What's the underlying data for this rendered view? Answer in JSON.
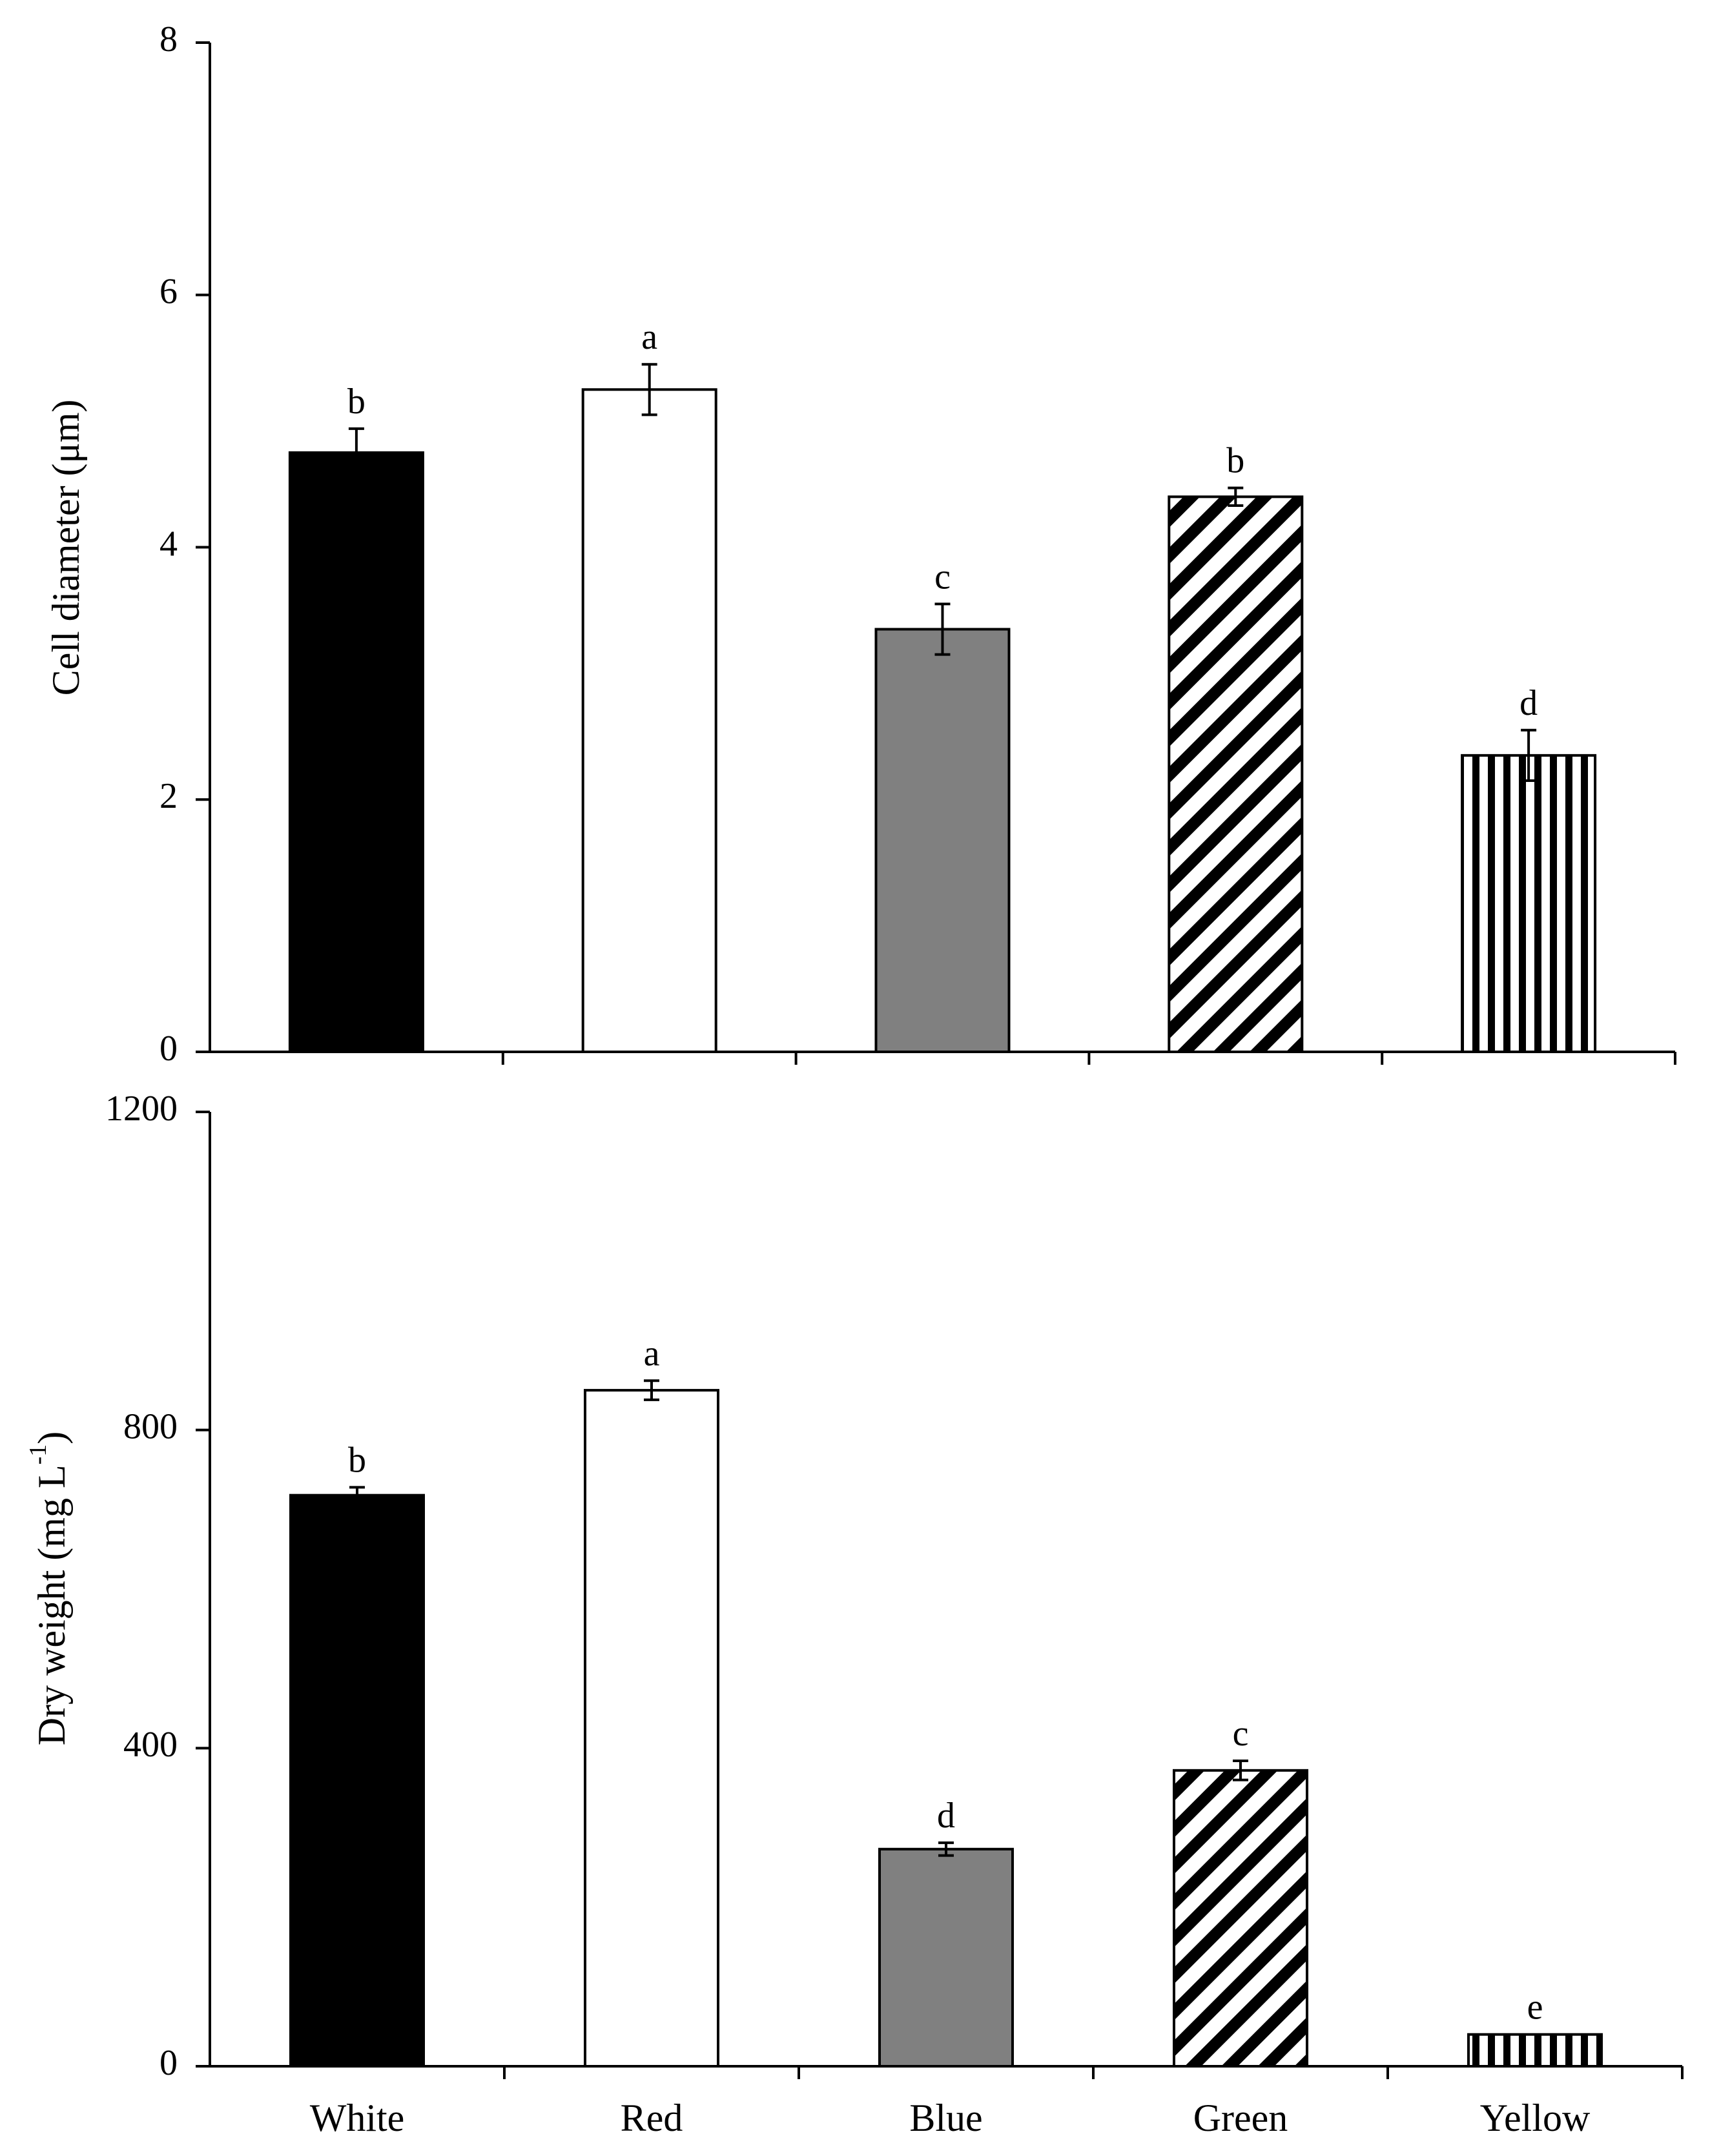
{
  "figure": {
    "categories": [
      "White",
      "Red",
      "Blue",
      "Green",
      "Yellow"
    ],
    "bar_styles": [
      {
        "fill": "#000000",
        "pattern": "solid"
      },
      {
        "fill": "#ffffff",
        "pattern": "solid"
      },
      {
        "fill": "#808080",
        "pattern": "solid"
      },
      {
        "fill": "#ffffff",
        "pattern": "diagonal-stripes"
      },
      {
        "fill": "#ffffff",
        "pattern": "vertical-stripes"
      }
    ]
  },
  "chart_data": [
    {
      "type": "bar",
      "title": "",
      "xlabel": "",
      "ylabel": "Cell diameter (μm)",
      "ylim": [
        0,
        8
      ],
      "yticks": [
        "0",
        "2",
        "4",
        "6",
        "8"
      ],
      "categories": [
        "White",
        "Red",
        "Blue",
        "Green",
        "Yellow"
      ],
      "show_category_labels": false,
      "values": [
        4.75,
        5.25,
        3.35,
        4.4,
        2.35
      ],
      "errors": [
        0.19,
        0.2,
        0.2,
        0.07,
        0.2
      ],
      "significance": [
        "b",
        "a",
        "c",
        "b",
        "d"
      ],
      "grid": false
    },
    {
      "type": "bar",
      "title": "",
      "xlabel": "",
      "ylabel": "Dry weight (mg L",
      "ylabel_sup": "-1",
      "ylabel_end": ")",
      "ylim": [
        0,
        1200
      ],
      "yticks": [
        "0",
        "400",
        "800",
        "1200"
      ],
      "categories": [
        "White",
        "Red",
        "Blue",
        "Green",
        "Yellow"
      ],
      "show_category_labels": true,
      "values": [
        718,
        850,
        273,
        372,
        40
      ],
      "errors": [
        10,
        12,
        8,
        12,
        0
      ],
      "significance": [
        "b",
        "a",
        "d",
        "c",
        "e"
      ],
      "grid": false
    }
  ]
}
